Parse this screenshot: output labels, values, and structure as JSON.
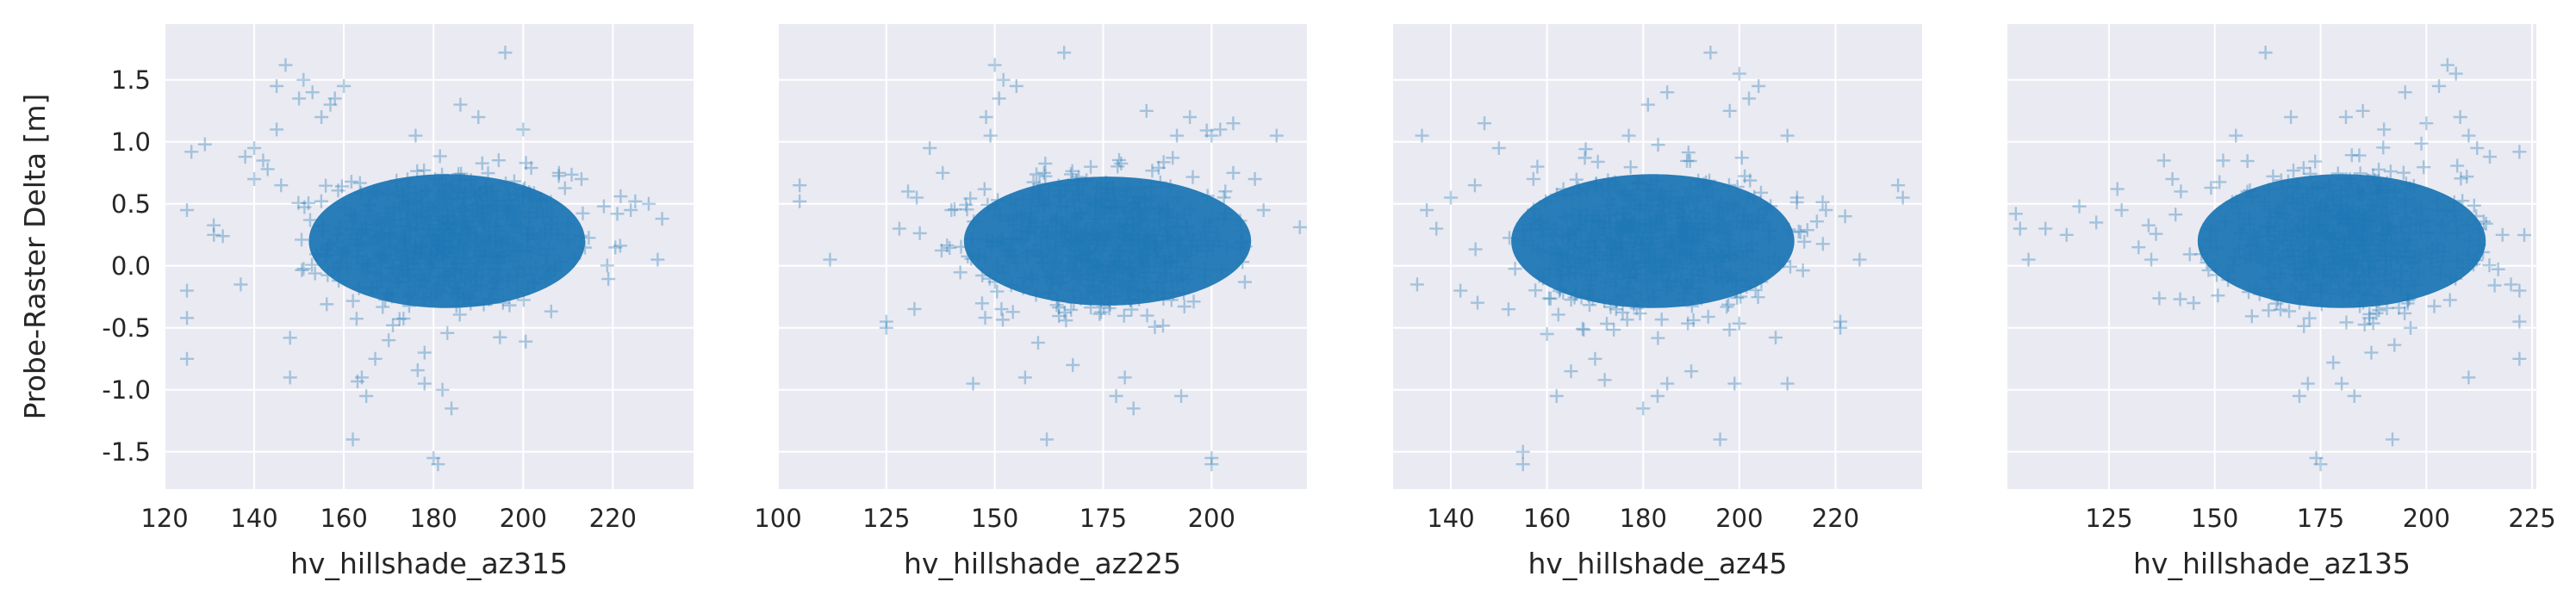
{
  "chart_data": [
    {
      "type": "scatter",
      "xlabel": "hv_hillshade_az315",
      "ylabel": "Probe-Raster Delta [m]",
      "marker": "+",
      "color": "#1f77b4",
      "xlim": [
        120,
        238
      ],
      "ylim": [
        -1.8,
        1.95
      ],
      "xticks": [
        120,
        140,
        160,
        180,
        200,
        220
      ],
      "yticks": [
        -1.5,
        -1.0,
        -0.5,
        0.0,
        0.5,
        1.0,
        1.5
      ],
      "cluster": {
        "x_range": [
          148,
          215
        ],
        "y_range": [
          -0.45,
          0.9
        ],
        "center": [
          183,
          0.2
        ]
      },
      "points": [
        [
          125,
          0.45
        ],
        [
          125,
          -0.2
        ],
        [
          125,
          -0.42
        ],
        [
          125,
          -0.75
        ],
        [
          126,
          0.92
        ],
        [
          129,
          0.98
        ],
        [
          131,
          0.25
        ],
        [
          133,
          0.24
        ],
        [
          137,
          -0.15
        ],
        [
          138,
          0.88
        ],
        [
          140,
          0.95
        ],
        [
          140,
          0.7
        ],
        [
          142,
          0.85
        ],
        [
          143,
          0.78
        ],
        [
          145,
          1.45
        ],
        [
          145,
          1.1
        ],
        [
          146,
          0.65
        ],
        [
          147,
          1.62
        ],
        [
          148,
          -0.58
        ],
        [
          148,
          -0.9
        ],
        [
          150,
          1.35
        ],
        [
          151,
          1.5
        ],
        [
          153,
          1.4
        ],
        [
          155,
          1.2
        ],
        [
          157,
          1.3
        ],
        [
          158,
          1.35
        ],
        [
          160,
          1.45
        ],
        [
          162,
          -1.4
        ],
        [
          164,
          -0.9
        ],
        [
          165,
          -1.05
        ],
        [
          167,
          -0.75
        ],
        [
          170,
          -0.6
        ],
        [
          176,
          1.05
        ],
        [
          178,
          -0.7
        ],
        [
          178,
          -0.95
        ],
        [
          180,
          -1.55
        ],
        [
          181,
          -1.6
        ],
        [
          182,
          -1.0
        ],
        [
          184,
          -1.15
        ],
        [
          186,
          1.3
        ],
        [
          190,
          1.2
        ],
        [
          196,
          1.72
        ],
        [
          200,
          1.1
        ],
        [
          208,
          0.75
        ],
        [
          213,
          0.7
        ],
        [
          218,
          0.48
        ],
        [
          221,
          0.42
        ],
        [
          224,
          0.45
        ],
        [
          225,
          0.52
        ],
        [
          228,
          0.5
        ],
        [
          230,
          0.05
        ],
        [
          231,
          0.38
        ]
      ]
    },
    {
      "type": "scatter",
      "xlabel": "hv_hillshade_az225",
      "ylabel": "",
      "marker": "+",
      "color": "#1f77b4",
      "xlim": [
        100,
        222
      ],
      "ylim": [
        -1.8,
        1.95
      ],
      "xticks": [
        100,
        125,
        150,
        175,
        200
      ],
      "yticks": [
        -1.5,
        -1.0,
        -0.5,
        0.0,
        0.5,
        1.0,
        1.5
      ],
      "cluster": {
        "x_range": [
          140,
          212
        ],
        "y_range": [
          -0.45,
          0.85
        ],
        "center": [
          176,
          0.2
        ]
      },
      "points": [
        [
          105,
          0.65
        ],
        [
          105,
          0.52
        ],
        [
          112,
          0.05
        ],
        [
          125,
          -0.45
        ],
        [
          125,
          -0.5
        ],
        [
          128,
          0.3
        ],
        [
          130,
          0.6
        ],
        [
          132,
          0.55
        ],
        [
          135,
          0.95
        ],
        [
          138,
          0.75
        ],
        [
          140,
          0.45
        ],
        [
          145,
          -0.95
        ],
        [
          148,
          1.2
        ],
        [
          149,
          1.05
        ],
        [
          150,
          1.62
        ],
        [
          151,
          1.35
        ],
        [
          152,
          1.5
        ],
        [
          155,
          1.45
        ],
        [
          157,
          -0.9
        ],
        [
          160,
          -0.62
        ],
        [
          162,
          -1.4
        ],
        [
          166,
          1.72
        ],
        [
          168,
          -0.8
        ],
        [
          178,
          -1.05
        ],
        [
          180,
          -0.9
        ],
        [
          182,
          -1.15
        ],
        [
          185,
          1.25
        ],
        [
          192,
          1.05
        ],
        [
          193,
          -1.05
        ],
        [
          195,
          1.2
        ],
        [
          200,
          1.05
        ],
        [
          200,
          -1.55
        ],
        [
          200,
          -1.6
        ],
        [
          202,
          1.1
        ],
        [
          205,
          0.75
        ],
        [
          205,
          1.15
        ],
        [
          210,
          0.7
        ],
        [
          212,
          0.45
        ],
        [
          215,
          1.05
        ]
      ]
    },
    {
      "type": "scatter",
      "xlabel": "hv_hillshade_az45",
      "ylabel": "",
      "marker": "+",
      "color": "#1f77b4",
      "xlim": [
        128,
        238
      ],
      "ylim": [
        -1.8,
        1.95
      ],
      "xticks": [
        140,
        160,
        180,
        200,
        220
      ],
      "yticks": [
        -1.5,
        -1.0,
        -0.5,
        0.0,
        0.5,
        1.0,
        1.5
      ],
      "cluster": {
        "x_range": [
          148,
          212
        ],
        "y_range": [
          -0.45,
          0.9
        ],
        "center": [
          182,
          0.2
        ]
      },
      "points": [
        [
          133,
          -0.15
        ],
        [
          134,
          1.05
        ],
        [
          135,
          0.45
        ],
        [
          137,
          0.3
        ],
        [
          140,
          0.55
        ],
        [
          142,
          -0.2
        ],
        [
          145,
          0.65
        ],
        [
          147,
          1.15
        ],
        [
          150,
          0.95
        ],
        [
          152,
          -0.35
        ],
        [
          155,
          -1.5
        ],
        [
          155,
          -1.6
        ],
        [
          158,
          0.8
        ],
        [
          160,
          -0.55
        ],
        [
          162,
          -1.05
        ],
        [
          165,
          -0.85
        ],
        [
          170,
          -0.75
        ],
        [
          172,
          -0.92
        ],
        [
          177,
          1.05
        ],
        [
          180,
          -1.15
        ],
        [
          181,
          1.3
        ],
        [
          183,
          -1.05
        ],
        [
          185,
          -0.95
        ],
        [
          185,
          1.4
        ],
        [
          190,
          -0.85
        ],
        [
          194,
          1.72
        ],
        [
          196,
          -1.4
        ],
        [
          198,
          1.25
        ],
        [
          199,
          -0.95
        ],
        [
          200,
          1.55
        ],
        [
          202,
          1.35
        ],
        [
          204,
          1.45
        ],
        [
          205,
          0.35
        ],
        [
          210,
          -0.95
        ],
        [
          210,
          1.05
        ],
        [
          212,
          0.55
        ],
        [
          218,
          0.45
        ],
        [
          221,
          -0.45
        ],
        [
          221,
          -0.5
        ],
        [
          222,
          0.4
        ],
        [
          225,
          0.05
        ],
        [
          233,
          0.65
        ],
        [
          234,
          0.55
        ]
      ]
    },
    {
      "type": "scatter",
      "xlabel": "hv_hillshade_az135",
      "ylabel": "",
      "marker": "+",
      "color": "#1f77b4",
      "xlim": [
        101,
        226
      ],
      "ylim": [
        -1.8,
        1.95
      ],
      "xticks": [
        125,
        150,
        175,
        200,
        225
      ],
      "yticks": [
        -1.5,
        -1.0,
        -0.5,
        0.0,
        0.5,
        1.0,
        1.5
      ],
      "cluster": {
        "x_range": [
          138,
          212
        ],
        "y_range": [
          -0.45,
          0.9
        ],
        "center": [
          180,
          0.2
        ]
      },
      "points": [
        [
          103,
          0.42
        ],
        [
          104,
          0.3
        ],
        [
          106,
          0.05
        ],
        [
          110,
          0.3
        ],
        [
          115,
          0.25
        ],
        [
          118,
          0.48
        ],
        [
          122,
          0.35
        ],
        [
          127,
          0.62
        ],
        [
          128,
          0.45
        ],
        [
          132,
          0.15
        ],
        [
          135,
          0.05
        ],
        [
          138,
          0.85
        ],
        [
          140,
          0.7
        ],
        [
          142,
          0.6
        ],
        [
          145,
          -0.3
        ],
        [
          152,
          0.85
        ],
        [
          155,
          1.05
        ],
        [
          162,
          1.72
        ],
        [
          168,
          1.2
        ],
        [
          170,
          -1.05
        ],
        [
          172,
          -0.95
        ],
        [
          174,
          -1.55
        ],
        [
          175,
          -1.6
        ],
        [
          178,
          -0.78
        ],
        [
          180,
          -0.95
        ],
        [
          181,
          1.2
        ],
        [
          183,
          -1.05
        ],
        [
          185,
          1.25
        ],
        [
          187,
          -0.7
        ],
        [
          190,
          1.1
        ],
        [
          192,
          -1.4
        ],
        [
          195,
          1.4
        ],
        [
          200,
          1.15
        ],
        [
          203,
          1.45
        ],
        [
          205,
          1.62
        ],
        [
          207,
          1.55
        ],
        [
          208,
          1.2
        ],
        [
          210,
          -0.9
        ],
        [
          210,
          1.05
        ],
        [
          212,
          0.95
        ],
        [
          215,
          0.88
        ],
        [
          218,
          0.25
        ],
        [
          220,
          -0.15
        ],
        [
          222,
          -0.2
        ],
        [
          222,
          -0.45
        ],
        [
          222,
          -0.75
        ],
        [
          222,
          0.92
        ]
      ]
    }
  ]
}
